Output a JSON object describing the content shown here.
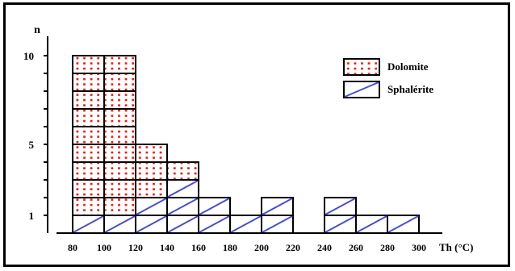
{
  "colors": {
    "dolomite_dot": "#e0241f",
    "sphalerite_line": "#4a4fc7",
    "outline": "#000000"
  },
  "chart_data": {
    "type": "bar",
    "title": "",
    "xlabel": "Th (°C)",
    "ylabel": "n",
    "x_ticks": [
      "80",
      "100",
      "120",
      "140",
      "160",
      "180",
      "200",
      "220",
      "240",
      "260",
      "280",
      "300"
    ],
    "y_ticks": [
      "1",
      "5",
      "10"
    ],
    "xlim": [
      80,
      320
    ],
    "ylim": [
      0,
      11
    ],
    "bin_width": 20,
    "stacked": true,
    "legend_position": "top-right",
    "legend": [
      {
        "label": "Dolomite",
        "pattern": "dots"
      },
      {
        "label": "Sphalérite",
        "pattern": "diagonal"
      }
    ],
    "bins": [
      {
        "from": 80,
        "to": 100,
        "sphalerite": 1,
        "dolomite": 9
      },
      {
        "from": 100,
        "to": 120,
        "sphalerite": 1,
        "dolomite": 9
      },
      {
        "from": 120,
        "to": 140,
        "sphalerite": 2,
        "dolomite": 3
      },
      {
        "from": 140,
        "to": 160,
        "sphalerite": 3,
        "dolomite": 1
      },
      {
        "from": 160,
        "to": 180,
        "sphalerite": 2,
        "dolomite": 0
      },
      {
        "from": 180,
        "to": 200,
        "sphalerite": 1,
        "dolomite": 0
      },
      {
        "from": 200,
        "to": 220,
        "sphalerite": 2,
        "dolomite": 0
      },
      {
        "from": 220,
        "to": 240,
        "sphalerite": 0,
        "dolomite": 0
      },
      {
        "from": 240,
        "to": 260,
        "sphalerite": 2,
        "dolomite": 0
      },
      {
        "from": 260,
        "to": 280,
        "sphalerite": 1,
        "dolomite": 0
      },
      {
        "from": 280,
        "to": 300,
        "sphalerite": 1,
        "dolomite": 0
      }
    ]
  }
}
